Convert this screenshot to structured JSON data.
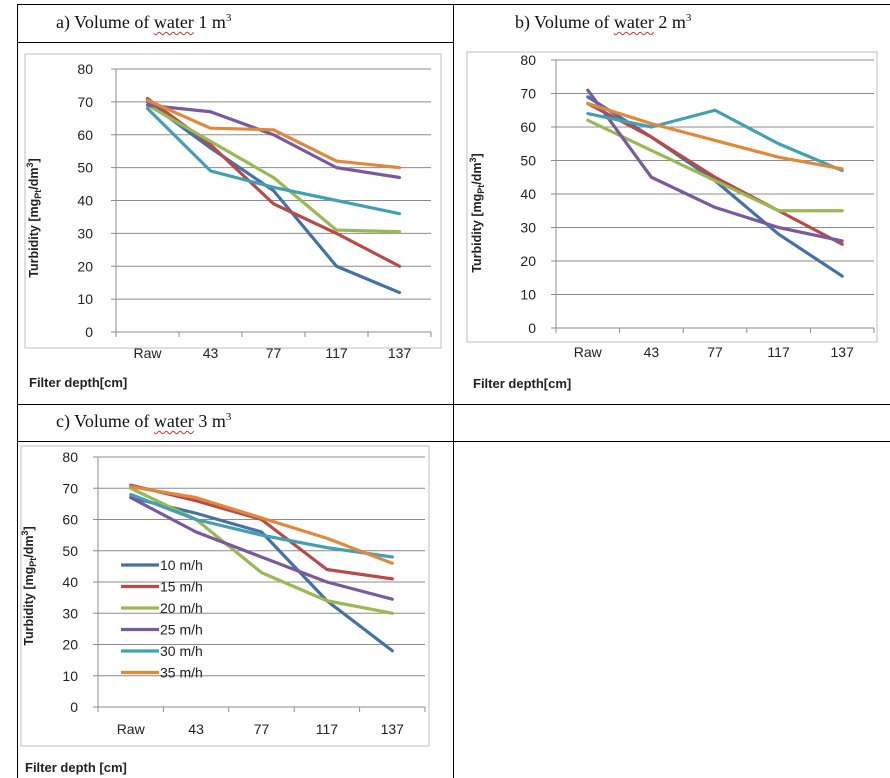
{
  "cells": [
    {
      "prefix": "a)  Volume of ",
      "underlined": "water",
      "suffix": " 1 m",
      "sup": "3"
    },
    {
      "prefix": "b)  Volume of ",
      "underlined": "water",
      "suffix": " 2 m",
      "sup": "3"
    },
    {
      "prefix": "c)  Volume of ",
      "underlined": "water",
      "suffix": " 3 m",
      "sup": "3"
    }
  ],
  "colors": [
    "#4472a8",
    "#b84a48",
    "#98b954",
    "#7a5a9e",
    "#43a0b3",
    "#e0893c"
  ],
  "chart_data": [
    {
      "type": "line",
      "categories": [
        "Raw",
        "43",
        "77",
        "117",
        "137"
      ],
      "ylabel": "Turbidity  [mgPt/dm3]",
      "xlabel": "Filter depth[cm]",
      "ylim": [
        0,
        80
      ],
      "yticks": [
        0,
        10,
        20,
        30,
        40,
        50,
        60,
        70,
        80
      ],
      "grid": true,
      "series": [
        {
          "name": "10 m/h",
          "values": [
            70,
            56,
            43,
            20,
            12
          ]
        },
        {
          "name": "15 m/h",
          "values": [
            71,
            57,
            39,
            30,
            20
          ]
        },
        {
          "name": "20 m/h",
          "values": [
            69,
            58,
            47,
            31,
            30.5
          ]
        },
        {
          "name": "25 m/h",
          "values": [
            69,
            67,
            60,
            50,
            47
          ]
        },
        {
          "name": "30 m/h",
          "values": [
            68,
            49,
            44,
            40,
            36
          ]
        },
        {
          "name": "35 m/h",
          "values": [
            70.5,
            62,
            61.5,
            52,
            50
          ]
        }
      ]
    },
    {
      "type": "line",
      "categories": [
        "Raw",
        "43",
        "77",
        "117",
        "137"
      ],
      "ylabel": "Turbidity  [mgPt/dm3]",
      "xlabel": "Filter depth[cm]",
      "ylim": [
        0,
        80
      ],
      "yticks": [
        0,
        10,
        20,
        30,
        40,
        50,
        60,
        70,
        80
      ],
      "grid": true,
      "series": [
        {
          "name": "10 m/h",
          "values": [
            69,
            57,
            44,
            28,
            15.5
          ]
        },
        {
          "name": "15 m/h",
          "values": [
            67,
            57,
            45,
            35,
            25
          ]
        },
        {
          "name": "20 m/h",
          "values": [
            62,
            53,
            44,
            35,
            35
          ]
        },
        {
          "name": "25 m/h",
          "values": [
            71,
            45,
            36,
            30,
            26
          ]
        },
        {
          "name": "30 m/h",
          "values": [
            64,
            60,
            65,
            55,
            47
          ]
        },
        {
          "name": "35 m/h",
          "values": [
            67,
            61,
            56,
            51,
            47.5
          ]
        }
      ]
    },
    {
      "type": "line",
      "categories": [
        "Raw",
        "43",
        "77",
        "117",
        "137"
      ],
      "ylabel": "Turbidity  [mgPt/dm3]",
      "xlabel": "Filter depth [cm]",
      "ylim": [
        0,
        80
      ],
      "yticks": [
        0,
        10,
        20,
        30,
        40,
        50,
        60,
        70,
        80
      ],
      "grid": true,
      "legend": "left",
      "series": [
        {
          "name": "10 m/h",
          "values": [
            67,
            62,
            56,
            34,
            18
          ]
        },
        {
          "name": "15 m/h",
          "values": [
            71,
            66,
            60,
            44,
            41
          ]
        },
        {
          "name": "20 m/h",
          "values": [
            70,
            60,
            43,
            34,
            30
          ]
        },
        {
          "name": "25 m/h",
          "values": [
            67,
            56,
            48,
            40,
            34.5
          ]
        },
        {
          "name": "30 m/h",
          "values": [
            68,
            60,
            55,
            51,
            48
          ]
        },
        {
          "name": "35 m/h",
          "values": [
            70.5,
            67,
            60.5,
            54,
            46
          ]
        }
      ]
    }
  ]
}
